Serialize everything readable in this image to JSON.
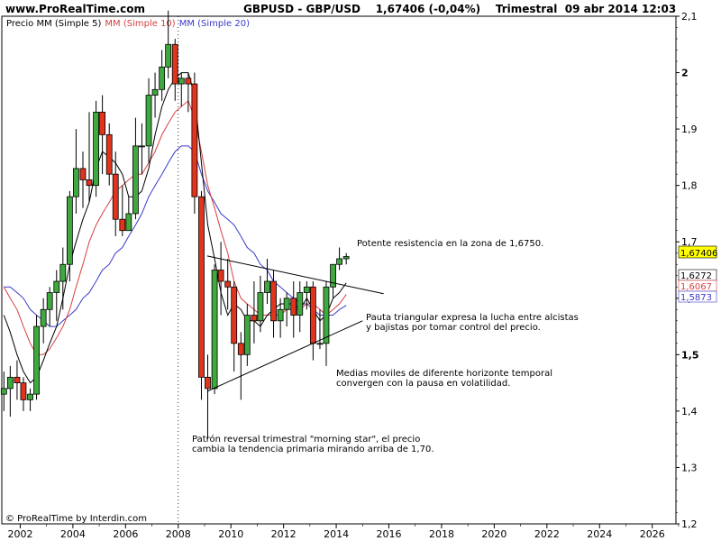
{
  "header": {
    "site": "www.ProRealTime.com",
    "title": "GBPUSD - GBP/USD    1,67406 (-0,04%)    Trimestral  09 abr 2014 12:03"
  },
  "legend": {
    "price": "Precio MM (Simple 5)",
    "ma10": "MM (Simple 10)",
    "ma20": "MM (Simple 20)"
  },
  "footer": {
    "copyright": "© ProRealTime by Interdin.com"
  },
  "colors": {
    "up": "#3fa83f",
    "down": "#e0341d",
    "ma5": "#000000",
    "ma10": "#d84040",
    "ma20": "#3a3ac8",
    "price_tag": "#ffff00"
  },
  "chart_data": {
    "type": "candlestick",
    "title": "GBPUSD - GBP/USD",
    "period": "Trimestral",
    "ylim": [
      1.2,
      2.1
    ],
    "xlim": [
      2001.3,
      2026.9
    ],
    "y_ticks": [
      "2,1",
      "2",
      "1,9",
      "1,8",
      "1,7",
      "1,6",
      "1,5",
      "1,4",
      "1,3",
      "1,2"
    ],
    "x_ticks": [
      "2002",
      "2004",
      "2006",
      "2008",
      "2010",
      "2012",
      "2014",
      "2016",
      "2018",
      "2020",
      "2022",
      "2024",
      "2026"
    ],
    "last_price": "1,67406",
    "ma_values": {
      "ma5": "1,6272",
      "ma10": "1,6067",
      "ma20": "1,5873"
    },
    "candles": [
      {
        "t": 2001.38,
        "o": 1.43,
        "h": 1.47,
        "l": 1.4,
        "c": 1.44
      },
      {
        "t": 2001.62,
        "o": 1.44,
        "h": 1.48,
        "l": 1.39,
        "c": 1.46
      },
      {
        "t": 2001.88,
        "o": 1.46,
        "h": 1.49,
        "l": 1.42,
        "c": 1.45
      },
      {
        "t": 2002.12,
        "o": 1.45,
        "h": 1.46,
        "l": 1.4,
        "c": 1.42
      },
      {
        "t": 2002.38,
        "o": 1.42,
        "h": 1.44,
        "l": 1.4,
        "c": 1.43
      },
      {
        "t": 2002.62,
        "o": 1.43,
        "h": 1.57,
        "l": 1.42,
        "c": 1.55
      },
      {
        "t": 2002.88,
        "o": 1.55,
        "h": 1.6,
        "l": 1.52,
        "c": 1.58
      },
      {
        "t": 2003.12,
        "o": 1.58,
        "h": 1.62,
        "l": 1.55,
        "c": 1.61
      },
      {
        "t": 2003.38,
        "o": 1.61,
        "h": 1.65,
        "l": 1.56,
        "c": 1.63
      },
      {
        "t": 2003.62,
        "o": 1.63,
        "h": 1.69,
        "l": 1.58,
        "c": 1.66
      },
      {
        "t": 2003.88,
        "o": 1.66,
        "h": 1.79,
        "l": 1.63,
        "c": 1.78
      },
      {
        "t": 2004.12,
        "o": 1.78,
        "h": 1.9,
        "l": 1.75,
        "c": 1.83
      },
      {
        "t": 2004.38,
        "o": 1.83,
        "h": 1.86,
        "l": 1.76,
        "c": 1.81
      },
      {
        "t": 2004.62,
        "o": 1.81,
        "h": 1.93,
        "l": 1.77,
        "c": 1.8
      },
      {
        "t": 2004.88,
        "o": 1.8,
        "h": 1.95,
        "l": 1.78,
        "c": 1.93
      },
      {
        "t": 2005.12,
        "o": 1.93,
        "h": 1.96,
        "l": 1.82,
        "c": 1.89
      },
      {
        "t": 2005.38,
        "o": 1.89,
        "h": 1.91,
        "l": 1.8,
        "c": 1.82
      },
      {
        "t": 2005.62,
        "o": 1.82,
        "h": 1.86,
        "l": 1.71,
        "c": 1.74
      },
      {
        "t": 2005.88,
        "o": 1.74,
        "h": 1.8,
        "l": 1.71,
        "c": 1.72
      },
      {
        "t": 2006.12,
        "o": 1.72,
        "h": 1.78,
        "l": 1.72,
        "c": 1.75
      },
      {
        "t": 2006.38,
        "o": 1.75,
        "h": 1.92,
        "l": 1.74,
        "c": 1.87
      },
      {
        "t": 2006.62,
        "o": 1.87,
        "h": 1.91,
        "l": 1.82,
        "c": 1.87
      },
      {
        "t": 2006.88,
        "o": 1.87,
        "h": 1.99,
        "l": 1.84,
        "c": 1.96
      },
      {
        "t": 2007.12,
        "o": 1.96,
        "h": 2.0,
        "l": 1.92,
        "c": 1.97
      },
      {
        "t": 2007.38,
        "o": 1.97,
        "h": 2.04,
        "l": 1.95,
        "c": 2.01
      },
      {
        "t": 2007.62,
        "o": 2.01,
        "h": 2.11,
        "l": 1.99,
        "c": 2.05
      },
      {
        "t": 2007.88,
        "o": 2.05,
        "h": 2.06,
        "l": 1.95,
        "c": 1.98
      },
      {
        "t": 2008.12,
        "o": 1.98,
        "h": 2.0,
        "l": 1.94,
        "c": 1.99
      },
      {
        "t": 2008.38,
        "o": 1.99,
        "h": 2.0,
        "l": 1.93,
        "c": 1.98
      },
      {
        "t": 2008.62,
        "o": 1.98,
        "h": 2.0,
        "l": 1.75,
        "c": 1.78
      },
      {
        "t": 2008.88,
        "o": 1.78,
        "h": 1.79,
        "l": 1.42,
        "c": 1.46
      },
      {
        "t": 2009.12,
        "o": 1.46,
        "h": 1.5,
        "l": 1.35,
        "c": 1.44
      },
      {
        "t": 2009.38,
        "o": 1.44,
        "h": 1.66,
        "l": 1.43,
        "c": 1.65
      },
      {
        "t": 2009.62,
        "o": 1.65,
        "h": 1.7,
        "l": 1.57,
        "c": 1.63
      },
      {
        "t": 2009.88,
        "o": 1.63,
        "h": 1.67,
        "l": 1.58,
        "c": 1.62
      },
      {
        "t": 2010.12,
        "o": 1.62,
        "h": 1.63,
        "l": 1.47,
        "c": 1.52
      },
      {
        "t": 2010.38,
        "o": 1.52,
        "h": 1.54,
        "l": 1.42,
        "c": 1.5
      },
      {
        "t": 2010.62,
        "o": 1.5,
        "h": 1.59,
        "l": 1.48,
        "c": 1.57
      },
      {
        "t": 2010.88,
        "o": 1.57,
        "h": 1.63,
        "l": 1.52,
        "c": 1.56
      },
      {
        "t": 2011.12,
        "o": 1.56,
        "h": 1.64,
        "l": 1.54,
        "c": 1.61
      },
      {
        "t": 2011.38,
        "o": 1.61,
        "h": 1.67,
        "l": 1.59,
        "c": 1.63
      },
      {
        "t": 2011.62,
        "o": 1.63,
        "h": 1.65,
        "l": 1.53,
        "c": 1.56
      },
      {
        "t": 2011.88,
        "o": 1.56,
        "h": 1.6,
        "l": 1.53,
        "c": 1.58
      },
      {
        "t": 2012.12,
        "o": 1.58,
        "h": 1.61,
        "l": 1.55,
        "c": 1.6
      },
      {
        "t": 2012.38,
        "o": 1.6,
        "h": 1.63,
        "l": 1.53,
        "c": 1.57
      },
      {
        "t": 2012.62,
        "o": 1.57,
        "h": 1.63,
        "l": 1.54,
        "c": 1.61
      },
      {
        "t": 2012.88,
        "o": 1.61,
        "h": 1.63,
        "l": 1.58,
        "c": 1.62
      },
      {
        "t": 2013.12,
        "o": 1.62,
        "h": 1.63,
        "l": 1.49,
        "c": 1.52
      },
      {
        "t": 2013.38,
        "o": 1.52,
        "h": 1.58,
        "l": 1.51,
        "c": 1.52
      },
      {
        "t": 2013.62,
        "o": 1.52,
        "h": 1.63,
        "l": 1.48,
        "c": 1.62
      },
      {
        "t": 2013.88,
        "o": 1.62,
        "h": 1.66,
        "l": 1.6,
        "c": 1.66
      },
      {
        "t": 2014.12,
        "o": 1.66,
        "h": 1.69,
        "l": 1.65,
        "c": 1.67
      },
      {
        "t": 2014.38,
        "o": 1.67,
        "h": 1.68,
        "l": 1.66,
        "c": 1.674
      }
    ],
    "ma5": [
      [
        2001.38,
        1.57
      ],
      [
        2001.62,
        1.54
      ],
      [
        2001.88,
        1.5
      ],
      [
        2002.12,
        1.47
      ],
      [
        2002.38,
        1.45
      ],
      [
        2002.62,
        1.46
      ],
      [
        2002.88,
        1.49
      ],
      [
        2003.12,
        1.52
      ],
      [
        2003.38,
        1.55
      ],
      [
        2003.62,
        1.6
      ],
      [
        2003.88,
        1.66
      ],
      [
        2004.12,
        1.7
      ],
      [
        2004.38,
        1.74
      ],
      [
        2004.62,
        1.77
      ],
      [
        2004.88,
        1.83
      ],
      [
        2005.12,
        1.86
      ],
      [
        2005.38,
        1.85
      ],
      [
        2005.62,
        1.84
      ],
      [
        2005.88,
        1.82
      ],
      [
        2006.12,
        1.78
      ],
      [
        2006.38,
        1.78
      ],
      [
        2006.62,
        1.79
      ],
      [
        2006.88,
        1.83
      ],
      [
        2007.12,
        1.89
      ],
      [
        2007.38,
        1.94
      ],
      [
        2007.62,
        1.97
      ],
      [
        2007.88,
        1.99
      ],
      [
        2008.12,
        2.0
      ],
      [
        2008.38,
        2.0
      ],
      [
        2008.62,
        1.96
      ],
      [
        2008.88,
        1.84
      ],
      [
        2009.12,
        1.73
      ],
      [
        2009.38,
        1.67
      ],
      [
        2009.62,
        1.61
      ],
      [
        2009.88,
        1.57
      ],
      [
        2010.12,
        1.59
      ],
      [
        2010.38,
        1.58
      ],
      [
        2010.62,
        1.56
      ],
      [
        2010.88,
        1.56
      ],
      [
        2011.12,
        1.55
      ],
      [
        2011.38,
        1.57
      ],
      [
        2011.62,
        1.58
      ],
      [
        2011.88,
        1.59
      ],
      [
        2012.12,
        1.59
      ],
      [
        2012.38,
        1.59
      ],
      [
        2012.62,
        1.58
      ],
      [
        2012.88,
        1.6
      ],
      [
        2013.12,
        1.58
      ],
      [
        2013.38,
        1.56
      ],
      [
        2013.62,
        1.57
      ],
      [
        2013.88,
        1.6
      ],
      [
        2014.12,
        1.61
      ],
      [
        2014.38,
        1.6272
      ]
    ],
    "ma10": [
      [
        2001.38,
        1.62
      ],
      [
        2001.62,
        1.6
      ],
      [
        2001.88,
        1.58
      ],
      [
        2002.12,
        1.55
      ],
      [
        2002.38,
        1.52
      ],
      [
        2002.62,
        1.5
      ],
      [
        2002.88,
        1.5
      ],
      [
        2003.12,
        1.51
      ],
      [
        2003.38,
        1.53
      ],
      [
        2003.62,
        1.55
      ],
      [
        2003.88,
        1.58
      ],
      [
        2004.12,
        1.62
      ],
      [
        2004.38,
        1.66
      ],
      [
        2004.62,
        1.7
      ],
      [
        2004.88,
        1.73
      ],
      [
        2005.12,
        1.75
      ],
      [
        2005.38,
        1.77
      ],
      [
        2005.62,
        1.79
      ],
      [
        2005.88,
        1.8
      ],
      [
        2006.12,
        1.81
      ],
      [
        2006.38,
        1.82
      ],
      [
        2006.62,
        1.82
      ],
      [
        2006.88,
        1.84
      ],
      [
        2007.12,
        1.86
      ],
      [
        2007.38,
        1.89
      ],
      [
        2007.62,
        1.91
      ],
      [
        2007.88,
        1.93
      ],
      [
        2008.12,
        1.94
      ],
      [
        2008.38,
        1.95
      ],
      [
        2008.62,
        1.92
      ],
      [
        2008.88,
        1.86
      ],
      [
        2009.12,
        1.8
      ],
      [
        2009.38,
        1.76
      ],
      [
        2009.62,
        1.72
      ],
      [
        2009.88,
        1.68
      ],
      [
        2010.12,
        1.63
      ],
      [
        2010.38,
        1.6
      ],
      [
        2010.62,
        1.59
      ],
      [
        2010.88,
        1.58
      ],
      [
        2011.12,
        1.57
      ],
      [
        2011.38,
        1.57
      ],
      [
        2011.62,
        1.57
      ],
      [
        2011.88,
        1.57
      ],
      [
        2012.12,
        1.58
      ],
      [
        2012.38,
        1.58
      ],
      [
        2012.62,
        1.58
      ],
      [
        2012.88,
        1.59
      ],
      [
        2013.12,
        1.59
      ],
      [
        2013.38,
        1.58
      ],
      [
        2013.62,
        1.57
      ],
      [
        2013.88,
        1.58
      ],
      [
        2014.12,
        1.59
      ],
      [
        2014.38,
        1.6067
      ]
    ],
    "ma20": [
      [
        2001.38,
        1.62
      ],
      [
        2001.62,
        1.62
      ],
      [
        2001.88,
        1.61
      ],
      [
        2002.12,
        1.6
      ],
      [
        2002.38,
        1.58
      ],
      [
        2002.62,
        1.57
      ],
      [
        2002.88,
        1.56
      ],
      [
        2003.12,
        1.55
      ],
      [
        2003.38,
        1.55
      ],
      [
        2003.62,
        1.56
      ],
      [
        2003.88,
        1.57
      ],
      [
        2004.12,
        1.58
      ],
      [
        2004.38,
        1.6
      ],
      [
        2004.62,
        1.61
      ],
      [
        2004.88,
        1.63
      ],
      [
        2005.12,
        1.65
      ],
      [
        2005.38,
        1.66
      ],
      [
        2005.62,
        1.68
      ],
      [
        2005.88,
        1.69
      ],
      [
        2006.12,
        1.71
      ],
      [
        2006.38,
        1.73
      ],
      [
        2006.62,
        1.75
      ],
      [
        2006.88,
        1.78
      ],
      [
        2007.12,
        1.8
      ],
      [
        2007.38,
        1.82
      ],
      [
        2007.62,
        1.84
      ],
      [
        2007.88,
        1.86
      ],
      [
        2008.12,
        1.87
      ],
      [
        2008.38,
        1.87
      ],
      [
        2008.62,
        1.86
      ],
      [
        2008.88,
        1.82
      ],
      [
        2009.12,
        1.79
      ],
      [
        2009.38,
        1.77
      ],
      [
        2009.62,
        1.75
      ],
      [
        2009.88,
        1.74
      ],
      [
        2010.12,
        1.73
      ],
      [
        2010.38,
        1.71
      ],
      [
        2010.62,
        1.69
      ],
      [
        2010.88,
        1.68
      ],
      [
        2011.12,
        1.66
      ],
      [
        2011.38,
        1.65
      ],
      [
        2011.62,
        1.63
      ],
      [
        2011.88,
        1.62
      ],
      [
        2012.12,
        1.61
      ],
      [
        2012.38,
        1.6
      ],
      [
        2012.62,
        1.59
      ],
      [
        2012.88,
        1.59
      ],
      [
        2013.12,
        1.58
      ],
      [
        2013.38,
        1.57
      ],
      [
        2013.62,
        1.57
      ],
      [
        2013.88,
        1.57
      ],
      [
        2014.12,
        1.58
      ],
      [
        2014.38,
        1.5873
      ]
    ],
    "trendlines": [
      {
        "from": [
          2009.1,
          1.675
        ],
        "to": [
          2015.8,
          1.608
        ]
      },
      {
        "from": [
          2009.1,
          1.435
        ],
        "to": [
          2015.0,
          1.56
        ]
      }
    ],
    "annotations": [
      "Potente resistencia en la zona de 1,6750.",
      "Pauta triangular expresa la lucha entre alcistas",
      "y bajistas por tomar control del precio.",
      "Medias moviles de diferente horizonte temporal",
      "convergen con la pausa en volatilidad.",
      "Patrón reversal trimestral \"morning star\", el precio",
      "cambia la tendencia primaria mirando arriba de 1,70."
    ]
  }
}
